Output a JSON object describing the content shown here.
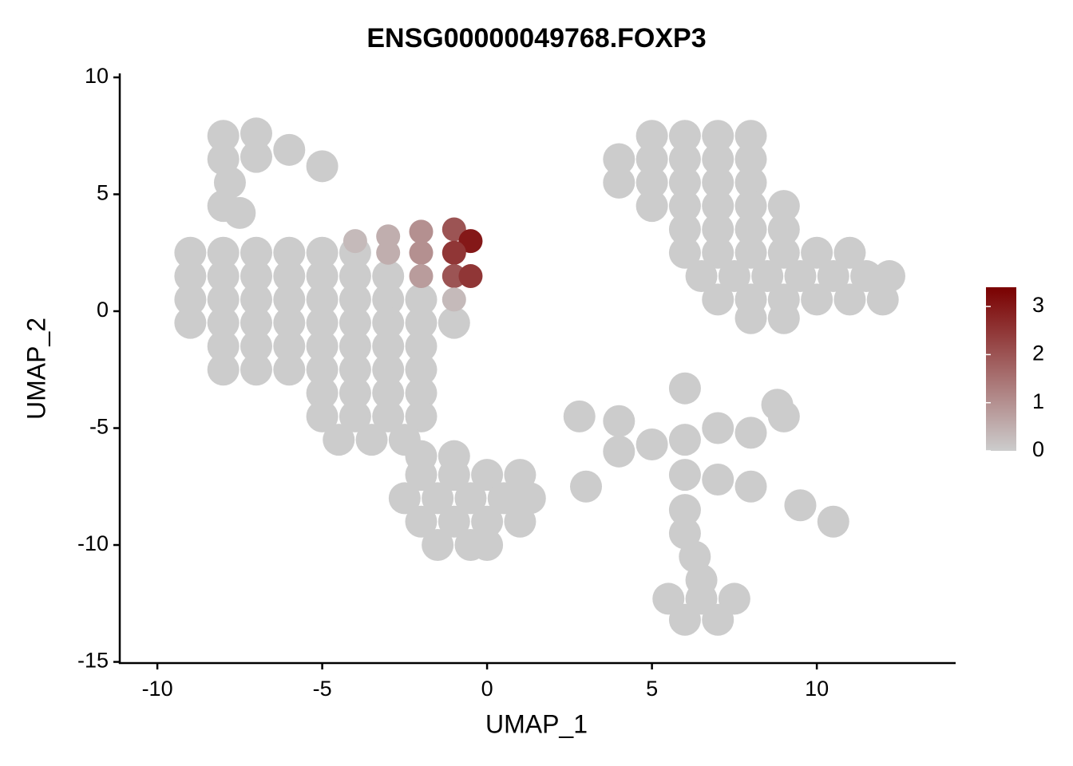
{
  "chart_data": {
    "type": "scatter",
    "title": "ENSG00000049768.FOXP3",
    "x_label": "UMAP_1",
    "y_label": "UMAP_2",
    "xlim": [
      -11.14,
      14.21
    ],
    "ylim": [
      -15.05,
      10.17
    ],
    "xticks": [
      -10,
      -5,
      0,
      5,
      10
    ],
    "yticks": [
      -15,
      -10,
      -5,
      0,
      5,
      10
    ],
    "color_scale": {
      "colors": [
        "#cccccc",
        "#7a0000"
      ],
      "lim": [
        0,
        3.4
      ],
      "ticks": [
        0,
        1,
        2,
        3
      ]
    },
    "x": [
      -8,
      -7,
      -6,
      -5,
      -8,
      -7,
      -7.8,
      -8,
      -7.5,
      -4,
      -3,
      -2,
      -1,
      -0.5,
      -9,
      -8,
      -7,
      -6,
      -5,
      -4,
      -3,
      -2,
      -1,
      -9,
      -8,
      -7,
      -6,
      -5,
      -4,
      -3,
      -2,
      -1,
      -0.5,
      -9,
      -8,
      -7,
      -6,
      -5,
      -4,
      -3,
      -2,
      -1,
      -9,
      -8,
      -7,
      -6,
      -5,
      -4,
      -3,
      -2,
      -1,
      -8,
      -7,
      -6,
      -5,
      -4,
      -3,
      -2,
      -8,
      -7,
      -6,
      -5,
      -4,
      -3,
      -2,
      -5,
      -4,
      -3,
      -2,
      -5,
      -4,
      -3,
      -2,
      -4.5,
      -3.5,
      -2.5,
      -2,
      -1,
      -2,
      -1,
      0,
      1,
      -2.5,
      -1.5,
      -0.5,
      0.5,
      1.3,
      -2,
      -1,
      0,
      1,
      -1.5,
      -0.5,
      0,
      5,
      6,
      7,
      8,
      4,
      5,
      6,
      7,
      8,
      4,
      5,
      6,
      7,
      8,
      5,
      6,
      7,
      8,
      9,
      6,
      7,
      8,
      9,
      6,
      7,
      8,
      9,
      10,
      11,
      6.5,
      7.5,
      8.5,
      9.5,
      10.5,
      11.5,
      12.2,
      7,
      8,
      9,
      10,
      11,
      12,
      8,
      9,
      2.8,
      4,
      5,
      6,
      7,
      8,
      9,
      4,
      3,
      6,
      7,
      8,
      9.5,
      10.5,
      6,
      6,
      6.3,
      8.8,
      6,
      5.5,
      6.5,
      7.5,
      6,
      7,
      6.5
    ],
    "y": [
      7.5,
      7.6,
      6.9,
      6.2,
      6.5,
      6.6,
      5.5,
      4.5,
      4.2,
      3,
      3.2,
      3.4,
      3.5,
      3,
      2.5,
      2.5,
      2.5,
      2.5,
      2.5,
      2.5,
      2.5,
      2.5,
      2.5,
      1.5,
      1.5,
      1.5,
      1.5,
      1.5,
      1.5,
      1.5,
      1.5,
      1.5,
      1.5,
      0.5,
      0.5,
      0.5,
      0.5,
      0.5,
      0.5,
      0.5,
      0.5,
      0.5,
      -0.5,
      -0.5,
      -0.5,
      -0.5,
      -0.5,
      -0.5,
      -0.5,
      -0.5,
      -0.5,
      -1.5,
      -1.5,
      -1.5,
      -1.5,
      -1.5,
      -1.5,
      -1.5,
      -2.5,
      -2.5,
      -2.5,
      -2.5,
      -2.5,
      -2.5,
      -2.5,
      -3.5,
      -3.5,
      -3.5,
      -3.5,
      -4.5,
      -4.5,
      -4.5,
      -4.5,
      -5.5,
      -5.5,
      -5.5,
      -6.2,
      -6.2,
      -7,
      -7,
      -7,
      -7,
      -8,
      -8,
      -8,
      -8,
      -8,
      -9,
      -9,
      -9,
      -9,
      -10,
      -10,
      -10,
      7.5,
      7.5,
      7.5,
      7.5,
      6.5,
      6.5,
      6.5,
      6.5,
      6.5,
      5.5,
      5.5,
      5.5,
      5.5,
      5.5,
      4.5,
      4.5,
      4.5,
      4.5,
      4.5,
      3.5,
      3.5,
      3.5,
      3.5,
      2.5,
      2.5,
      2.5,
      2.5,
      2.5,
      2.5,
      1.5,
      1.5,
      1.5,
      1.5,
      1.5,
      1.5,
      1.5,
      0.5,
      0.5,
      0.5,
      0.5,
      0.5,
      0.5,
      -0.3,
      -0.3,
      -4.5,
      -4.7,
      -5.7,
      -5.5,
      -5,
      -5.2,
      -4.5,
      -6,
      -7.5,
      -7,
      -7.2,
      -7.5,
      -8.3,
      -9,
      -8.5,
      -9.5,
      -10.5,
      -4,
      -3.3,
      -12.3,
      -12.3,
      -12.3,
      -13.2,
      -13.2,
      -11.5
    ],
    "values": [
      0,
      0,
      0,
      0,
      0,
      0,
      0,
      0,
      0,
      0.3,
      0.5,
      1,
      2,
      3,
      0,
      0,
      0,
      0,
      0,
      0,
      0.5,
      1,
      2.5,
      0,
      0,
      0,
      0,
      0,
      0,
      0,
      0.8,
      2,
      2.5,
      0,
      0,
      0,
      0,
      0,
      0,
      0,
      0,
      0.3,
      0,
      0,
      0,
      0,
      0,
      0,
      0,
      0,
      0,
      0,
      0,
      0,
      0,
      0,
      0,
      0,
      0,
      0,
      0,
      0,
      0,
      0,
      0,
      0,
      0,
      0,
      0,
      0,
      0,
      0,
      0,
      0,
      0,
      0,
      0,
      0,
      0,
      0,
      0,
      0,
      0,
      0,
      0,
      0,
      0,
      0,
      0,
      0,
      0,
      0,
      0,
      0,
      0,
      0,
      0,
      0,
      0,
      0,
      0,
      0,
      0,
      0,
      0,
      0,
      0,
      0,
      0,
      0,
      0,
      0,
      0,
      0,
      0,
      0,
      0,
      0,
      0,
      0,
      0,
      0,
      0,
      0,
      0,
      0,
      0,
      0,
      0,
      0,
      0,
      0,
      0,
      0,
      0,
      0,
      0,
      0,
      0,
      0,
      0,
      0,
      0,
      0,
      0,
      0,
      0,
      0,
      0,
      0,
      0,
      0,
      0,
      0,
      0,
      0,
      0,
      0,
      0,
      0,
      0,
      0,
      0
    ]
  }
}
